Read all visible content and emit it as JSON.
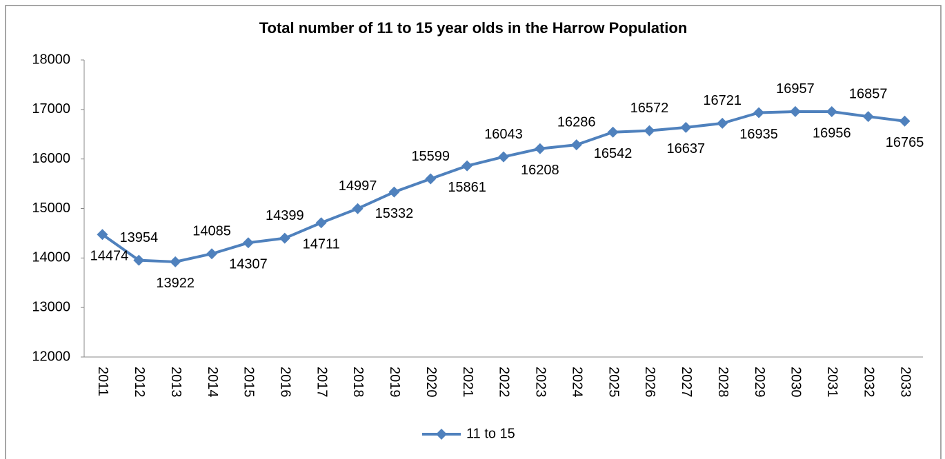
{
  "chart_data": {
    "type": "line",
    "title": "Total number of 11 to 15 year  olds in the Harrow Population",
    "categories": [
      "2011",
      "2012",
      "2013",
      "2014",
      "2015",
      "2016",
      "2017",
      "2018",
      "2019",
      "2020",
      "2021",
      "2022",
      "2023",
      "2024",
      "2025",
      "2026",
      "2027",
      "2028",
      "2029",
      "2030",
      "2031",
      "2032",
      "2033"
    ],
    "series": [
      {
        "name": "11 to 15",
        "color": "#4f81bd",
        "values": [
          14474,
          13954,
          13922,
          14085,
          14307,
          14399,
          14711,
          14997,
          15332,
          15599,
          15861,
          16043,
          16208,
          16286,
          16542,
          16572,
          16637,
          16721,
          16935,
          16957,
          16956,
          16857,
          16765
        ]
      }
    ],
    "ylim": [
      12000,
      18000
    ],
    "yticks": [
      12000,
      13000,
      14000,
      15000,
      16000,
      17000,
      18000
    ],
    "legend": "bottom"
  }
}
